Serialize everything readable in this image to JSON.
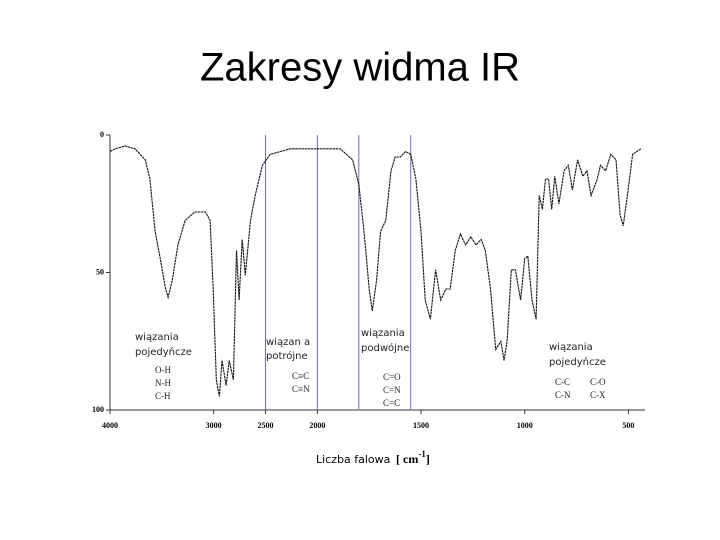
{
  "chart_data": {
    "type": "line",
    "title": "Zakresy widma IR",
    "x_label": "Liczba falowa",
    "x_unit": [
      "[ cm",
      "-1",
      "]"
    ],
    "xlim": [
      4000,
      420
    ],
    "x_scale_break": 2000,
    "ylim": [
      100,
      0
    ],
    "xticks": [
      4000,
      3000,
      2500,
      2000,
      1500,
      1000,
      500
    ],
    "yticks": [
      0,
      50,
      100
    ],
    "vlines": [
      2500,
      2000,
      1800,
      1550
    ],
    "vline_color": "#6c6cb4",
    "color": "#111111",
    "x": [
      4000,
      3950,
      3855,
      3760,
      3660,
      3615,
      3565,
      3515,
      3470,
      3440,
      3400,
      3345,
      3275,
      3180,
      3080,
      3035,
      3005,
      2975,
      2945,
      2920,
      2880,
      2850,
      2810,
      2780,
      2755,
      2725,
      2695,
      2645,
      2600,
      2530,
      2455,
      2260,
      2000,
      1890,
      1830,
      1800,
      1775,
      1750,
      1735,
      1715,
      1695,
      1670,
      1645,
      1625,
      1600,
      1575,
      1550,
      1525,
      1500,
      1480,
      1455,
      1430,
      1405,
      1380,
      1360,
      1335,
      1310,
      1285,
      1260,
      1235,
      1210,
      1190,
      1165,
      1140,
      1115,
      1100,
      1085,
      1065,
      1045,
      1020,
      1000,
      985,
      965,
      945,
      930,
      915,
      900,
      885,
      870,
      855,
      835,
      810,
      790,
      770,
      745,
      720,
      700,
      680,
      650,
      635,
      610,
      585,
      560,
      540,
      525,
      505,
      480,
      440
    ],
    "values": [
      6,
      5,
      4,
      5,
      9,
      16,
      35,
      45,
      55,
      59,
      53,
      40,
      31,
      28,
      28,
      31,
      56,
      89,
      95,
      82,
      91,
      82,
      89,
      42,
      60,
      38,
      51,
      31,
      22,
      11,
      7,
      5,
      5,
      5,
      9,
      18,
      35,
      56,
      64,
      53,
      35,
      31,
      13,
      8,
      8,
      6,
      7,
      16,
      35,
      60,
      67,
      49,
      60,
      56,
      56,
      42,
      36,
      40,
      37,
      40,
      38,
      42,
      56,
      78,
      75,
      82,
      75,
      49,
      49,
      60,
      45,
      44,
      60,
      67,
      22,
      27,
      16,
      16,
      27,
      15,
      25,
      13,
      11,
      20,
      9,
      15,
      13,
      22,
      16,
      11,
      13,
      7,
      9,
      29,
      33,
      22,
      7,
      5
    ],
    "annotations": [
      {
        "heading": [
          "wiązania",
          "pojedyńcze"
        ],
        "labels": [
          "O-H",
          "N-H",
          "C-H"
        ]
      },
      {
        "heading": [
          "wiązan a",
          "potrójne"
        ],
        "labels": [
          "C≡C",
          "C≡N"
        ]
      },
      {
        "heading": [
          "wiązania",
          "podwójne"
        ],
        "labels": [
          "C=O",
          "C=N",
          "C=C"
        ]
      },
      {
        "heading": [
          "wiązania",
          "pojedyńcze"
        ],
        "labels": [
          "C-C",
          "C-O",
          "C-N",
          "C-X"
        ]
      }
    ]
  }
}
